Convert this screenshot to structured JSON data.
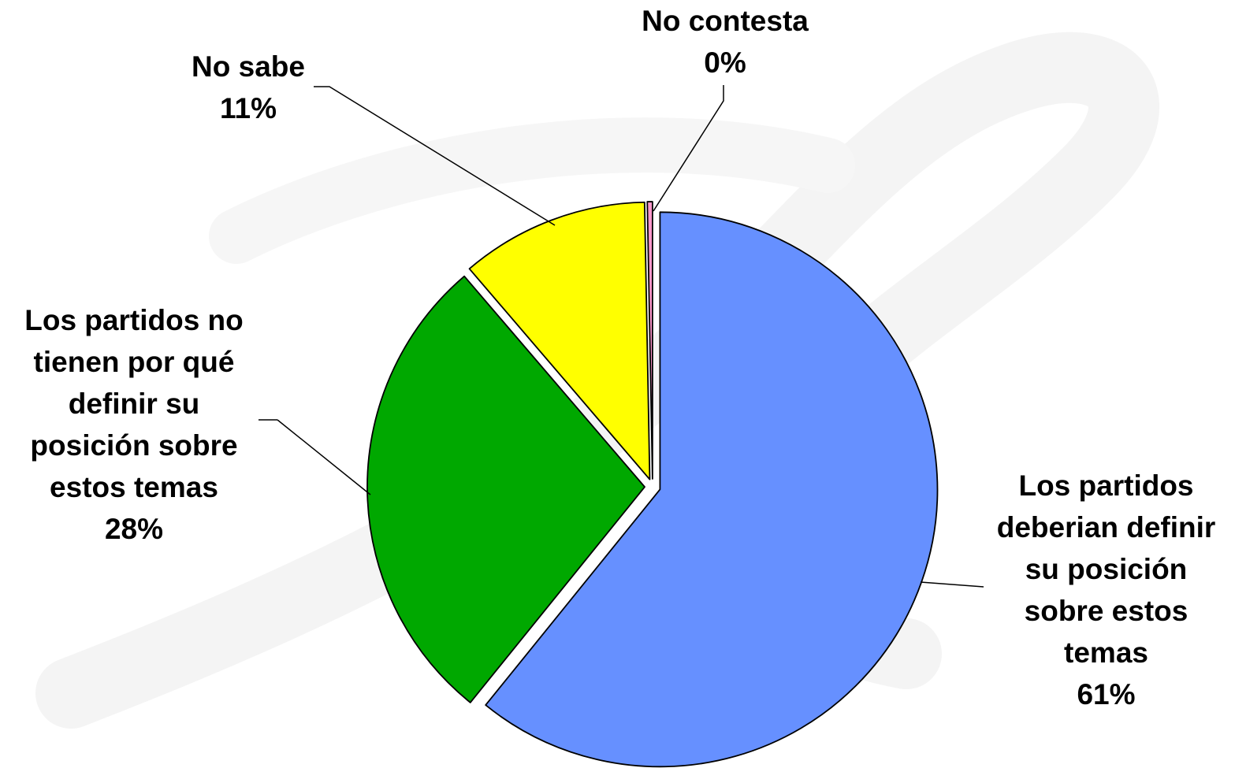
{
  "chart_data": {
    "type": "pie",
    "title": "",
    "slices": [
      {
        "label_lines": [
          "Los partidos",
          "deberian definir",
          "su posición",
          "sobre estos",
          "temas"
        ],
        "percent_label": "61%",
        "value": 61,
        "color": "#6690FF"
      },
      {
        "label_lines": [
          "Los partidos no",
          "tienen por qué",
          "definir su",
          "posición sobre",
          "estos temas"
        ],
        "percent_label": "28%",
        "value": 28,
        "color": "#00A800"
      },
      {
        "label_lines": [
          "No sabe"
        ],
        "percent_label": "11%",
        "value": 11,
        "color": "#FFFF00"
      },
      {
        "label_lines": [
          "No contesta"
        ],
        "percent_label": "0%",
        "value": 0.3,
        "color": "#FF99CC"
      }
    ],
    "start_angle": "12 o'clock",
    "direction": "clockwise",
    "exploded": true,
    "legend": "none",
    "watermark": "decorative gray brush-stroke mark behind chart"
  }
}
